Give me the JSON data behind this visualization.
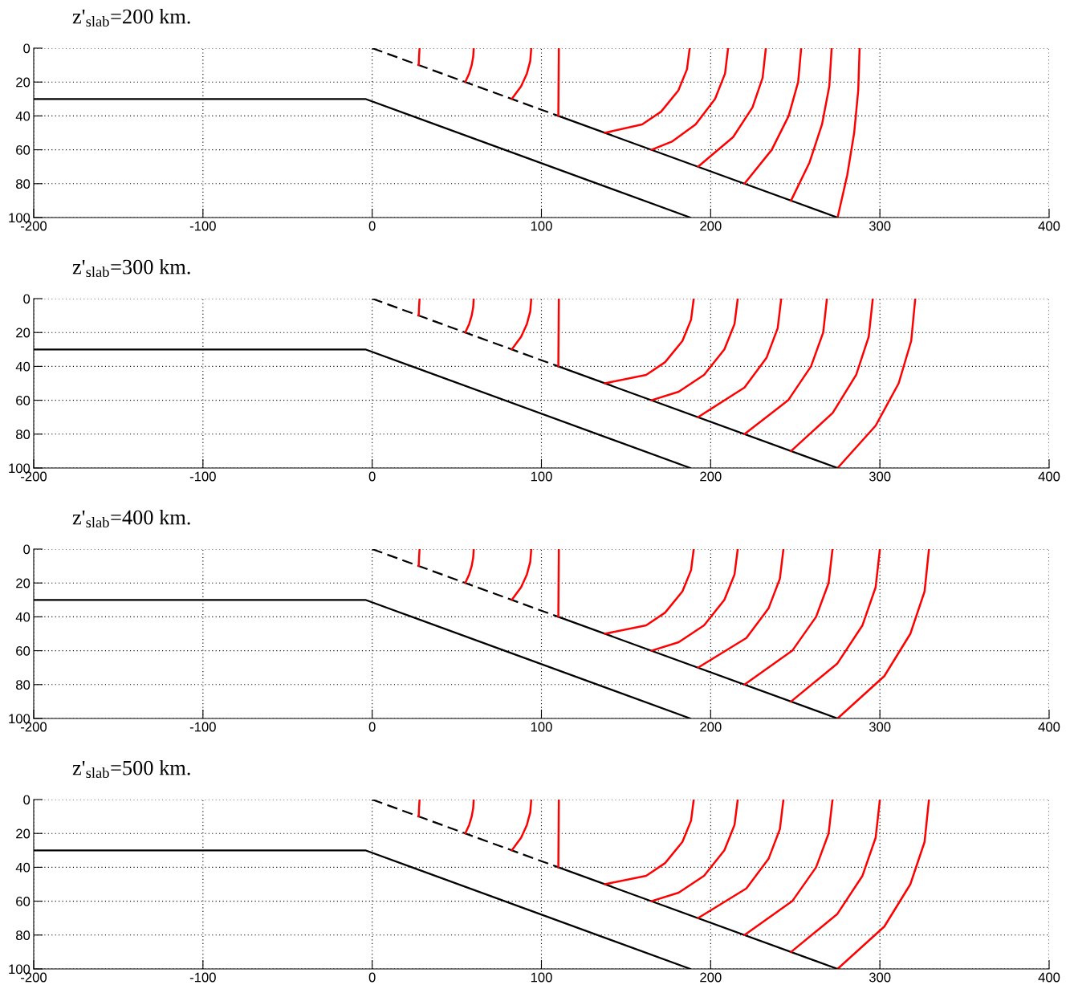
{
  "chart_data": [
    {
      "type": "line",
      "title": "z'$_{slab}$=200 km.",
      "xlim": [
        -200,
        400
      ],
      "ylim": [
        100,
        0
      ],
      "xticks": [
        -200,
        -100,
        0,
        100,
        200,
        300,
        400
      ],
      "yticks": [
        0,
        20,
        40,
        60,
        80,
        100
      ],
      "grid": true,
      "series": [
        {
          "color": "#000000",
          "line_style": "solid",
          "x": [
            -200,
            -4,
            188
          ],
          "values": [
            30,
            30,
            100
          ]
        },
        {
          "color": "#000000",
          "line_style": "dashed",
          "x": [
            0,
            110
          ],
          "values": [
            0,
            40
          ]
        },
        {
          "color": "#000000",
          "line_style": "solid",
          "x": [
            110,
            275
          ],
          "values": [
            40,
            100
          ]
        },
        {
          "color": "#ff0000",
          "line_style": "solid",
          "x": [
            27.5,
            27.7,
            28
          ],
          "values": [
            10,
            5,
            0
          ]
        },
        {
          "color": "#ff0000",
          "line_style": "solid",
          "x": [
            55,
            57.3,
            58.8,
            59.7,
            60
          ],
          "values": [
            20,
            15,
            10,
            5,
            0
          ]
        },
        {
          "color": "#ff0000",
          "line_style": "solid",
          "x": [
            82.5,
            88,
            91.4,
            93.4,
            94
          ],
          "values": [
            30,
            22.5,
            15,
            7.5,
            0
          ]
        },
        {
          "color": "#ff0000",
          "line_style": "solid",
          "x": [
            110,
            110.3
          ],
          "values": [
            40,
            0
          ]
        },
        {
          "color": "#ff0000",
          "line_style": "solid",
          "x": [
            137.5,
            159.5,
            170.7,
            180.9,
            186,
            187.6
          ],
          "values": [
            50,
            45,
            37.5,
            25,
            12.5,
            0
          ]
        },
        {
          "color": "#ff0000",
          "line_style": "solid",
          "x": [
            165,
            177.4,
            191.1,
            202.6,
            208.5,
            210.3
          ],
          "values": [
            60,
            55,
            45,
            30,
            15,
            0
          ]
        },
        {
          "color": "#ff0000",
          "line_style": "solid",
          "x": [
            192.5,
            213.3,
            224.7,
            230.7,
            232.6
          ],
          "values": [
            70,
            52.5,
            35,
            17.5,
            0
          ]
        },
        {
          "color": "#ff0000",
          "line_style": "solid",
          "x": [
            220,
            236.1,
            246.1,
            251.7,
            253.5
          ],
          "values": [
            80,
            60,
            40,
            20,
            0
          ]
        },
        {
          "color": "#ff0000",
          "line_style": "solid",
          "x": [
            247.5,
            258.4,
            265.8,
            270.1,
            271.5
          ],
          "values": [
            90,
            67.5,
            45,
            22.5,
            0
          ]
        },
        {
          "color": "#ff0000",
          "line_style": "solid",
          "x": [
            275,
            280.7,
            284.8,
            287.2,
            288
          ],
          "values": [
            100,
            75,
            50,
            25,
            0
          ]
        }
      ]
    },
    {
      "type": "line",
      "title": "z'$_{slab}$=300 km.",
      "xlim": [
        -200,
        400
      ],
      "ylim": [
        100,
        0
      ],
      "xticks": [
        -200,
        -100,
        0,
        100,
        200,
        300,
        400
      ],
      "yticks": [
        0,
        20,
        40,
        60,
        80,
        100
      ],
      "grid": true,
      "series": [
        {
          "color": "#000000",
          "line_style": "solid",
          "x": [
            -200,
            -4,
            188
          ],
          "values": [
            30,
            30,
            100
          ]
        },
        {
          "color": "#000000",
          "line_style": "dashed",
          "x": [
            0,
            110
          ],
          "values": [
            0,
            40
          ]
        },
        {
          "color": "#000000",
          "line_style": "solid",
          "x": [
            110,
            275
          ],
          "values": [
            40,
            100
          ]
        },
        {
          "color": "#ff0000",
          "line_style": "solid",
          "x": [
            27.5,
            27.7,
            28
          ],
          "values": [
            10,
            5,
            0
          ]
        },
        {
          "color": "#ff0000",
          "line_style": "solid",
          "x": [
            55,
            57.3,
            58.8,
            59.7,
            60
          ],
          "values": [
            20,
            15,
            10,
            5,
            0
          ]
        },
        {
          "color": "#ff0000",
          "line_style": "solid",
          "x": [
            82.5,
            88,
            91.4,
            93.4,
            94
          ],
          "values": [
            30,
            22.5,
            15,
            7.5,
            0
          ]
        },
        {
          "color": "#ff0000",
          "line_style": "solid",
          "x": [
            110,
            110.3
          ],
          "values": [
            40,
            0
          ]
        },
        {
          "color": "#ff0000",
          "line_style": "solid",
          "x": [
            137.5,
            161.9,
            173.1,
            183.3,
            188.4,
            190
          ],
          "values": [
            50,
            45,
            37.5,
            25,
            12.5,
            0
          ]
        },
        {
          "color": "#ff0000",
          "line_style": "solid",
          "x": [
            165,
            181.1,
            196.1,
            208.1,
            214.1,
            216
          ],
          "values": [
            60,
            55,
            45,
            30,
            15,
            0
          ]
        },
        {
          "color": "#ff0000",
          "line_style": "solid",
          "x": [
            192.5,
            220,
            233,
            239.6,
            241.7
          ],
          "values": [
            70,
            52.5,
            35,
            17.5,
            0
          ]
        },
        {
          "color": "#ff0000",
          "line_style": "solid",
          "x": [
            220,
            245.8,
            259.3,
            266.5,
            268.7
          ],
          "values": [
            80,
            60,
            40,
            20,
            0
          ]
        },
        {
          "color": "#ff0000",
          "line_style": "solid",
          "x": [
            247.5,
            272.1,
            286,
            293.4,
            295.8
          ],
          "values": [
            90,
            67.5,
            45,
            22.5,
            0
          ]
        },
        {
          "color": "#ff0000",
          "line_style": "solid",
          "x": [
            275,
            297.5,
            311.1,
            318.5,
            320.9
          ],
          "values": [
            100,
            75,
            50,
            25,
            0
          ]
        }
      ]
    },
    {
      "type": "line",
      "title": "z'$_{slab}$=400 km.",
      "xlim": [
        -200,
        400
      ],
      "ylim": [
        100,
        0
      ],
      "xticks": [
        -200,
        -100,
        0,
        100,
        200,
        300,
        400
      ],
      "yticks": [
        0,
        20,
        40,
        60,
        80,
        100
      ],
      "grid": true,
      "series": [
        {
          "color": "#000000",
          "line_style": "solid",
          "x": [
            -200,
            -4,
            188
          ],
          "values": [
            30,
            30,
            100
          ]
        },
        {
          "color": "#000000",
          "line_style": "dashed",
          "x": [
            0,
            110
          ],
          "values": [
            0,
            40
          ]
        },
        {
          "color": "#000000",
          "line_style": "solid",
          "x": [
            110,
            275
          ],
          "values": [
            40,
            100
          ]
        },
        {
          "color": "#ff0000",
          "line_style": "solid",
          "x": [
            27.5,
            27.7,
            28
          ],
          "values": [
            10,
            5,
            0
          ]
        },
        {
          "color": "#ff0000",
          "line_style": "solid",
          "x": [
            55,
            57.3,
            58.8,
            59.7,
            60
          ],
          "values": [
            20,
            15,
            10,
            5,
            0
          ]
        },
        {
          "color": "#ff0000",
          "line_style": "solid",
          "x": [
            82.5,
            88,
            91.4,
            93.4,
            94
          ],
          "values": [
            30,
            22.5,
            15,
            7.5,
            0
          ]
        },
        {
          "color": "#ff0000",
          "line_style": "solid",
          "x": [
            110,
            110.3
          ],
          "values": [
            40,
            0
          ]
        },
        {
          "color": "#ff0000",
          "line_style": "solid",
          "x": [
            137.5,
            161.9,
            173.1,
            183.3,
            188.4,
            190
          ],
          "values": [
            50,
            45,
            37.5,
            25,
            12.5,
            0
          ]
        },
        {
          "color": "#ff0000",
          "line_style": "solid",
          "x": [
            165,
            181.1,
            196.1,
            208.1,
            214.1,
            216
          ],
          "values": [
            60,
            55,
            45,
            30,
            15,
            0
          ]
        },
        {
          "color": "#ff0000",
          "line_style": "solid",
          "x": [
            192.5,
            221.1,
            234.2,
            240.9,
            243
          ],
          "values": [
            70,
            52.5,
            35,
            17.5,
            0
          ]
        },
        {
          "color": "#ff0000",
          "line_style": "solid",
          "x": [
            220,
            248.2,
            262.3,
            269.7,
            272
          ],
          "values": [
            80,
            60,
            40,
            20,
            0
          ]
        },
        {
          "color": "#ff0000",
          "line_style": "solid",
          "x": [
            247.5,
            274.9,
            289.7,
            297.5,
            300
          ],
          "values": [
            90,
            67.5,
            45,
            22.5,
            0
          ]
        },
        {
          "color": "#ff0000",
          "line_style": "solid",
          "x": [
            275,
            302.6,
            318,
            326.4,
            329
          ],
          "values": [
            100,
            75,
            50,
            25,
            0
          ]
        }
      ]
    },
    {
      "type": "line",
      "title": "z'$_{slab}$=500 km.",
      "xlim": [
        -200,
        400
      ],
      "ylim": [
        100,
        0
      ],
      "xticks": [
        -200,
        -100,
        0,
        100,
        200,
        300,
        400
      ],
      "yticks": [
        0,
        20,
        40,
        60,
        80,
        100
      ],
      "grid": true,
      "series": [
        {
          "color": "#000000",
          "line_style": "solid",
          "x": [
            -200,
            -4,
            188
          ],
          "values": [
            30,
            30,
            100
          ]
        },
        {
          "color": "#000000",
          "line_style": "dashed",
          "x": [
            0,
            110
          ],
          "values": [
            0,
            40
          ]
        },
        {
          "color": "#000000",
          "line_style": "solid",
          "x": [
            110,
            275
          ],
          "values": [
            40,
            100
          ]
        },
        {
          "color": "#ff0000",
          "line_style": "solid",
          "x": [
            27.5,
            27.7,
            28
          ],
          "values": [
            10,
            5,
            0
          ]
        },
        {
          "color": "#ff0000",
          "line_style": "solid",
          "x": [
            55,
            57.3,
            58.8,
            59.7,
            60
          ],
          "values": [
            20,
            15,
            10,
            5,
            0
          ]
        },
        {
          "color": "#ff0000",
          "line_style": "solid",
          "x": [
            82.5,
            88,
            91.4,
            93.4,
            94
          ],
          "values": [
            30,
            22.5,
            15,
            7.5,
            0
          ]
        },
        {
          "color": "#ff0000",
          "line_style": "solid",
          "x": [
            110,
            110.3
          ],
          "values": [
            40,
            0
          ]
        },
        {
          "color": "#ff0000",
          "line_style": "solid",
          "x": [
            137.5,
            161.9,
            173.1,
            183.3,
            188.4,
            190
          ],
          "values": [
            50,
            45,
            37.5,
            25,
            12.5,
            0
          ]
        },
        {
          "color": "#ff0000",
          "line_style": "solid",
          "x": [
            165,
            181.1,
            196.1,
            208.1,
            214.1,
            216
          ],
          "values": [
            60,
            55,
            45,
            30,
            15,
            0
          ]
        },
        {
          "color": "#ff0000",
          "line_style": "solid",
          "x": [
            192.5,
            221.1,
            234.2,
            240.9,
            243
          ],
          "values": [
            70,
            52.5,
            35,
            17.5,
            0
          ]
        },
        {
          "color": "#ff0000",
          "line_style": "solid",
          "x": [
            220,
            248.2,
            262.3,
            269.7,
            272
          ],
          "values": [
            80,
            60,
            40,
            20,
            0
          ]
        },
        {
          "color": "#ff0000",
          "line_style": "solid",
          "x": [
            247.5,
            274.9,
            289.7,
            297.5,
            300
          ],
          "values": [
            90,
            67.5,
            45,
            22.5,
            0
          ]
        },
        {
          "color": "#ff0000",
          "line_style": "solid",
          "x": [
            275,
            302.6,
            318,
            326.4,
            329
          ],
          "values": [
            100,
            75,
            50,
            25,
            0
          ]
        }
      ]
    }
  ]
}
